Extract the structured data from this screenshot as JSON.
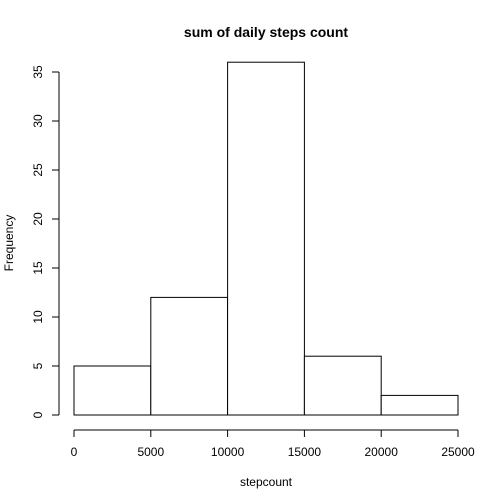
{
  "chart_data": {
    "type": "bar",
    "title": "sum of daily steps count",
    "xlabel": "stepcount",
    "ylabel": "Frequency",
    "bins": [
      {
        "start": 0,
        "end": 5000,
        "count": 5
      },
      {
        "start": 5000,
        "end": 10000,
        "count": 12
      },
      {
        "start": 10000,
        "end": 15000,
        "count": 36
      },
      {
        "start": 15000,
        "end": 20000,
        "count": 6
      },
      {
        "start": 20000,
        "end": 25000,
        "count": 2
      }
    ],
    "xlim": [
      0,
      25000
    ],
    "ylim": [
      0,
      35
    ],
    "x_ticks": [
      0,
      5000,
      10000,
      15000,
      20000,
      25000
    ],
    "y_ticks": [
      0,
      5,
      10,
      15,
      20,
      25,
      30,
      35
    ],
    "grid": false,
    "legend": "none"
  }
}
